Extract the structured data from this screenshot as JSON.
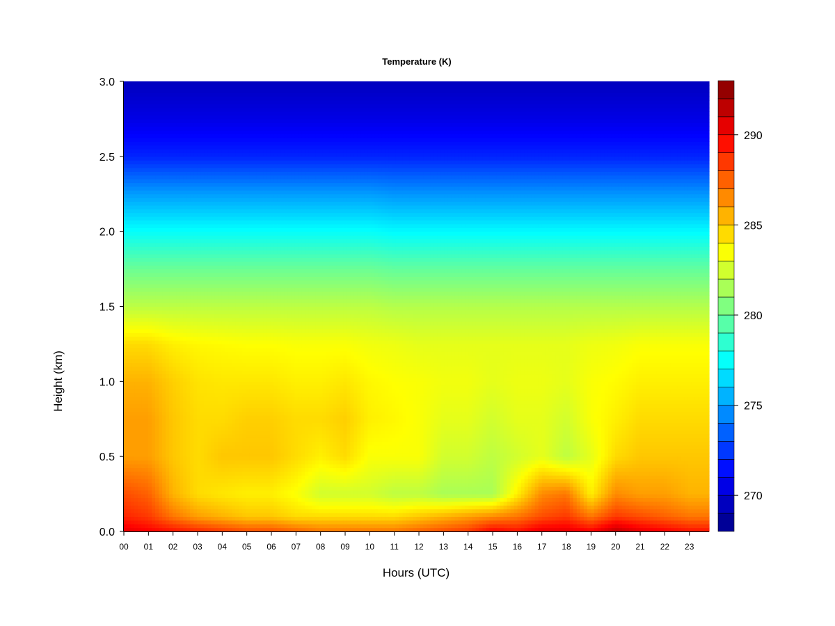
{
  "chart_data": {
    "type": "heatmap",
    "title": "Temperature (K)",
    "xlabel": "Hours (UTC)",
    "ylabel": "Height (km)",
    "x_ticks": [
      "00",
      "01",
      "02",
      "03",
      "04",
      "05",
      "06",
      "07",
      "08",
      "09",
      "10",
      "11",
      "12",
      "13",
      "14",
      "15",
      "16",
      "17",
      "18",
      "19",
      "20",
      "21",
      "22",
      "23"
    ],
    "xlim": [
      0,
      23.8
    ],
    "y_ticks": [
      0.0,
      0.5,
      1.0,
      1.5,
      2.0,
      2.5,
      3.0
    ],
    "y_tick_labels": [
      "0.0",
      "0.5",
      "1.0",
      "1.5",
      "2.0",
      "2.5",
      "3.0"
    ],
    "ylim": [
      0,
      3.0
    ],
    "colorbar": {
      "ticks": [
        270,
        275,
        280,
        285,
        290
      ],
      "tick_labels": [
        "270",
        "275",
        "280",
        "285",
        "290"
      ],
      "range": [
        268,
        293
      ],
      "n_levels": 25,
      "colormap": "jet"
    },
    "x": [
      0,
      1,
      2,
      3,
      4,
      5,
      6,
      7,
      8,
      9,
      10,
      11,
      12,
      13,
      14,
      15,
      16,
      17,
      18,
      19,
      20,
      21,
      22,
      23
    ],
    "y": [
      0.0,
      0.1,
      0.25,
      0.5,
      0.75,
      1.0,
      1.25,
      1.5,
      1.75,
      2.0,
      2.25,
      2.5,
      2.75,
      3.0
    ],
    "z": [
      [
        290.5,
        289.0,
        288.0,
        286.0,
        286.0,
        285.5,
        284.5,
        282.0,
        280.0,
        277.5,
        275.0,
        272.0,
        270.5,
        269.5
      ],
      [
        290.0,
        288.5,
        287.5,
        286.0,
        286.0,
        285.5,
        284.5,
        282.0,
        280.0,
        277.5,
        275.0,
        272.0,
        270.5,
        269.5
      ],
      [
        289.5,
        287.0,
        285.5,
        285.0,
        285.0,
        284.8,
        284.0,
        282.0,
        280.0,
        277.5,
        275.0,
        272.0,
        270.5,
        269.5
      ],
      [
        289.0,
        286.0,
        284.5,
        284.5,
        284.5,
        284.3,
        283.8,
        282.0,
        280.0,
        277.5,
        275.0,
        272.0,
        270.5,
        269.5
      ],
      [
        288.5,
        285.5,
        284.2,
        285.0,
        284.5,
        284.2,
        283.7,
        282.0,
        280.0,
        277.5,
        275.0,
        272.0,
        270.5,
        269.5
      ],
      [
        288.0,
        285.0,
        284.0,
        285.0,
        284.8,
        284.2,
        283.6,
        282.0,
        280.0,
        277.5,
        275.0,
        272.0,
        270.5,
        269.5
      ],
      [
        288.0,
        285.0,
        284.0,
        285.0,
        284.8,
        284.2,
        283.6,
        282.0,
        280.0,
        277.5,
        275.0,
        272.0,
        270.5,
        269.5
      ],
      [
        287.5,
        284.5,
        283.5,
        284.5,
        284.5,
        284.0,
        283.5,
        282.0,
        280.0,
        277.5,
        275.0,
        272.0,
        270.5,
        269.5
      ],
      [
        287.0,
        284.5,
        282.5,
        284.0,
        284.5,
        284.0,
        283.5,
        282.0,
        280.0,
        277.5,
        275.0,
        272.0,
        270.5,
        269.5
      ],
      [
        287.0,
        284.5,
        282.5,
        284.5,
        284.8,
        284.2,
        283.5,
        282.0,
        280.0,
        277.5,
        275.0,
        272.0,
        270.5,
        269.5
      ],
      [
        287.0,
        284.5,
        282.5,
        283.5,
        284.0,
        283.8,
        283.3,
        282.0,
        280.0,
        277.5,
        275.0,
        272.0,
        270.5,
        269.5
      ],
      [
        287.0,
        284.5,
        282.0,
        283.5,
        283.8,
        283.6,
        283.2,
        281.8,
        279.8,
        277.3,
        274.8,
        272.0,
        270.5,
        269.5
      ],
      [
        287.5,
        285.0,
        282.0,
        283.5,
        283.5,
        283.5,
        283.0,
        281.8,
        279.8,
        277.3,
        274.8,
        272.0,
        270.5,
        269.5
      ],
      [
        288.0,
        285.5,
        281.5,
        282.5,
        283.0,
        283.3,
        283.0,
        281.8,
        279.8,
        277.3,
        274.8,
        272.0,
        270.5,
        269.5
      ],
      [
        288.5,
        286.0,
        281.5,
        282.5,
        283.0,
        283.3,
        283.0,
        281.8,
        279.8,
        277.3,
        274.8,
        272.0,
        270.5,
        269.5
      ],
      [
        290.0,
        286.5,
        281.5,
        282.0,
        282.5,
        283.0,
        283.0,
        281.8,
        279.8,
        277.3,
        274.8,
        272.0,
        270.5,
        269.5
      ],
      [
        289.5,
        287.0,
        284.0,
        282.5,
        283.0,
        283.2,
        283.0,
        281.8,
        279.8,
        277.3,
        274.8,
        272.0,
        270.5,
        269.5
      ],
      [
        290.5,
        288.0,
        286.5,
        283.0,
        283.0,
        283.2,
        283.0,
        281.8,
        279.8,
        277.3,
        274.8,
        272.0,
        270.5,
        269.5
      ],
      [
        290.5,
        288.5,
        287.0,
        282.0,
        282.5,
        283.0,
        283.0,
        281.8,
        279.8,
        277.3,
        274.8,
        272.0,
        270.5,
        269.5
      ],
      [
        290.0,
        287.0,
        284.0,
        283.0,
        283.5,
        283.5,
        283.2,
        281.8,
        279.8,
        277.3,
        274.8,
        272.0,
        270.5,
        269.5
      ],
      [
        291.5,
        288.5,
        286.5,
        284.5,
        284.0,
        283.7,
        283.3,
        281.8,
        279.8,
        277.3,
        274.8,
        272.0,
        270.5,
        269.5
      ],
      [
        290.5,
        288.0,
        286.0,
        285.0,
        284.5,
        284.0,
        283.5,
        281.8,
        279.8,
        277.3,
        274.8,
        272.0,
        270.5,
        269.5
      ],
      [
        290.0,
        287.5,
        286.0,
        285.0,
        284.5,
        284.0,
        283.5,
        281.8,
        279.8,
        277.3,
        274.8,
        272.0,
        270.5,
        269.5
      ],
      [
        289.5,
        287.0,
        285.5,
        285.0,
        284.5,
        284.0,
        283.5,
        281.8,
        279.8,
        277.3,
        274.8,
        272.0,
        270.5,
        269.5
      ]
    ]
  }
}
